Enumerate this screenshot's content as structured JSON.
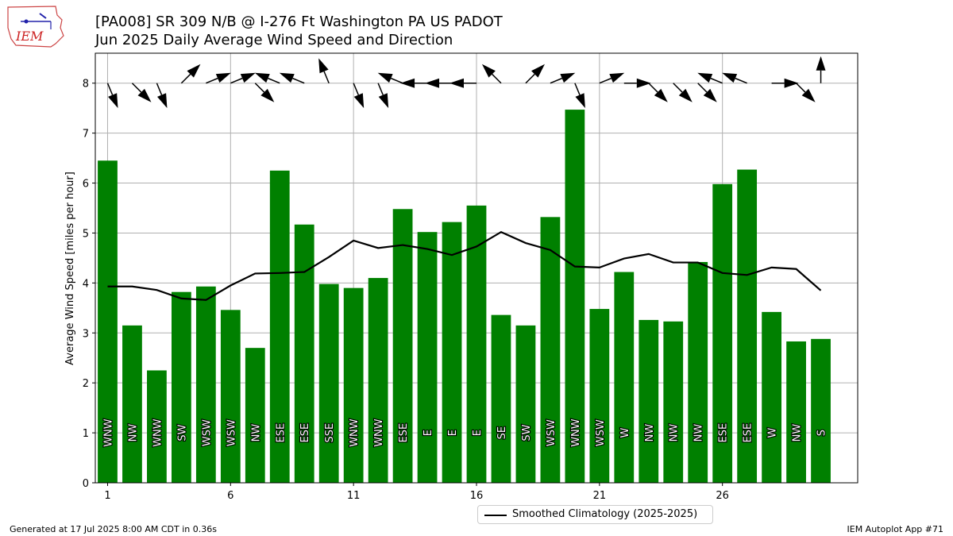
{
  "header": {
    "title_line1": "[PA008] SR 309 N/B @ I-276 Ft Washington PA US  PADOT",
    "title_line2": "Jun 2025 Daily Average Wind Speed and Direction",
    "logo_text": "IEM"
  },
  "footer": {
    "generated": "Generated at 17 Jul 2025 8:00 AM CDT in 0.36s",
    "app": "IEM Autoplot App #71"
  },
  "colors": {
    "bar": "#008000",
    "line": "#000000",
    "grid": "#b0b0b0",
    "label_text": "#ffffff"
  },
  "chart_data": {
    "type": "bar",
    "x": [
      1,
      2,
      3,
      4,
      5,
      6,
      7,
      8,
      9,
      10,
      11,
      12,
      13,
      14,
      15,
      16,
      17,
      18,
      19,
      20,
      21,
      22,
      23,
      24,
      25,
      26,
      27,
      28,
      29,
      30
    ],
    "values": [
      6.45,
      3.15,
      2.25,
      3.82,
      3.93,
      3.46,
      2.7,
      6.25,
      5.17,
      3.98,
      3.9,
      4.1,
      5.48,
      5.02,
      5.22,
      5.55,
      3.36,
      3.15,
      5.32,
      7.47,
      3.48,
      4.22,
      3.26,
      3.23,
      4.42,
      5.98,
      6.27,
      3.42,
      2.83,
      2.88
    ],
    "direction_labels": [
      "WNW",
      "NW",
      "WNW",
      "SW",
      "WSW",
      "WSW",
      "NW",
      "ESE",
      "ESE",
      "SSE",
      "WNW",
      "WNW",
      "ESE",
      "E",
      "E",
      "E",
      "SE",
      "SW",
      "WSW",
      "WNW",
      "WSW",
      "W",
      "NW",
      "NW",
      "NW",
      "ESE",
      "ESE",
      "W",
      "NW",
      "S"
    ],
    "arrow_angles_deg": [
      157.5,
      135,
      157.5,
      45,
      67.5,
      67.5,
      135,
      292.5,
      292.5,
      337.5,
      157.5,
      157.5,
      292.5,
      270,
      270,
      270,
      315,
      45,
      67.5,
      157.5,
      67.5,
      90,
      135,
      135,
      135,
      292.5,
      292.5,
      90,
      135,
      0
    ],
    "climatology": [
      3.93,
      3.93,
      3.86,
      3.69,
      3.66,
      3.95,
      4.19,
      4.2,
      4.22,
      4.52,
      4.85,
      4.7,
      4.76,
      4.68,
      4.56,
      4.73,
      5.02,
      4.8,
      4.66,
      4.33,
      4.31,
      4.49,
      4.58,
      4.41,
      4.41,
      4.2,
      4.16,
      4.31,
      4.28,
      3.85
    ],
    "xticks": [
      1,
      6,
      11,
      16,
      21,
      26
    ],
    "yticks": [
      0,
      1,
      2,
      3,
      4,
      5,
      6,
      7,
      8
    ],
    "xlim": [
      0.5,
      31.5
    ],
    "ylim": [
      0,
      8.6
    ],
    "ylabel": "Average Wind Speed [miles per hour]",
    "legend": {
      "label": "Smoothed Climatology (2025-2025)",
      "placement": "below-center"
    },
    "grid": true
  }
}
